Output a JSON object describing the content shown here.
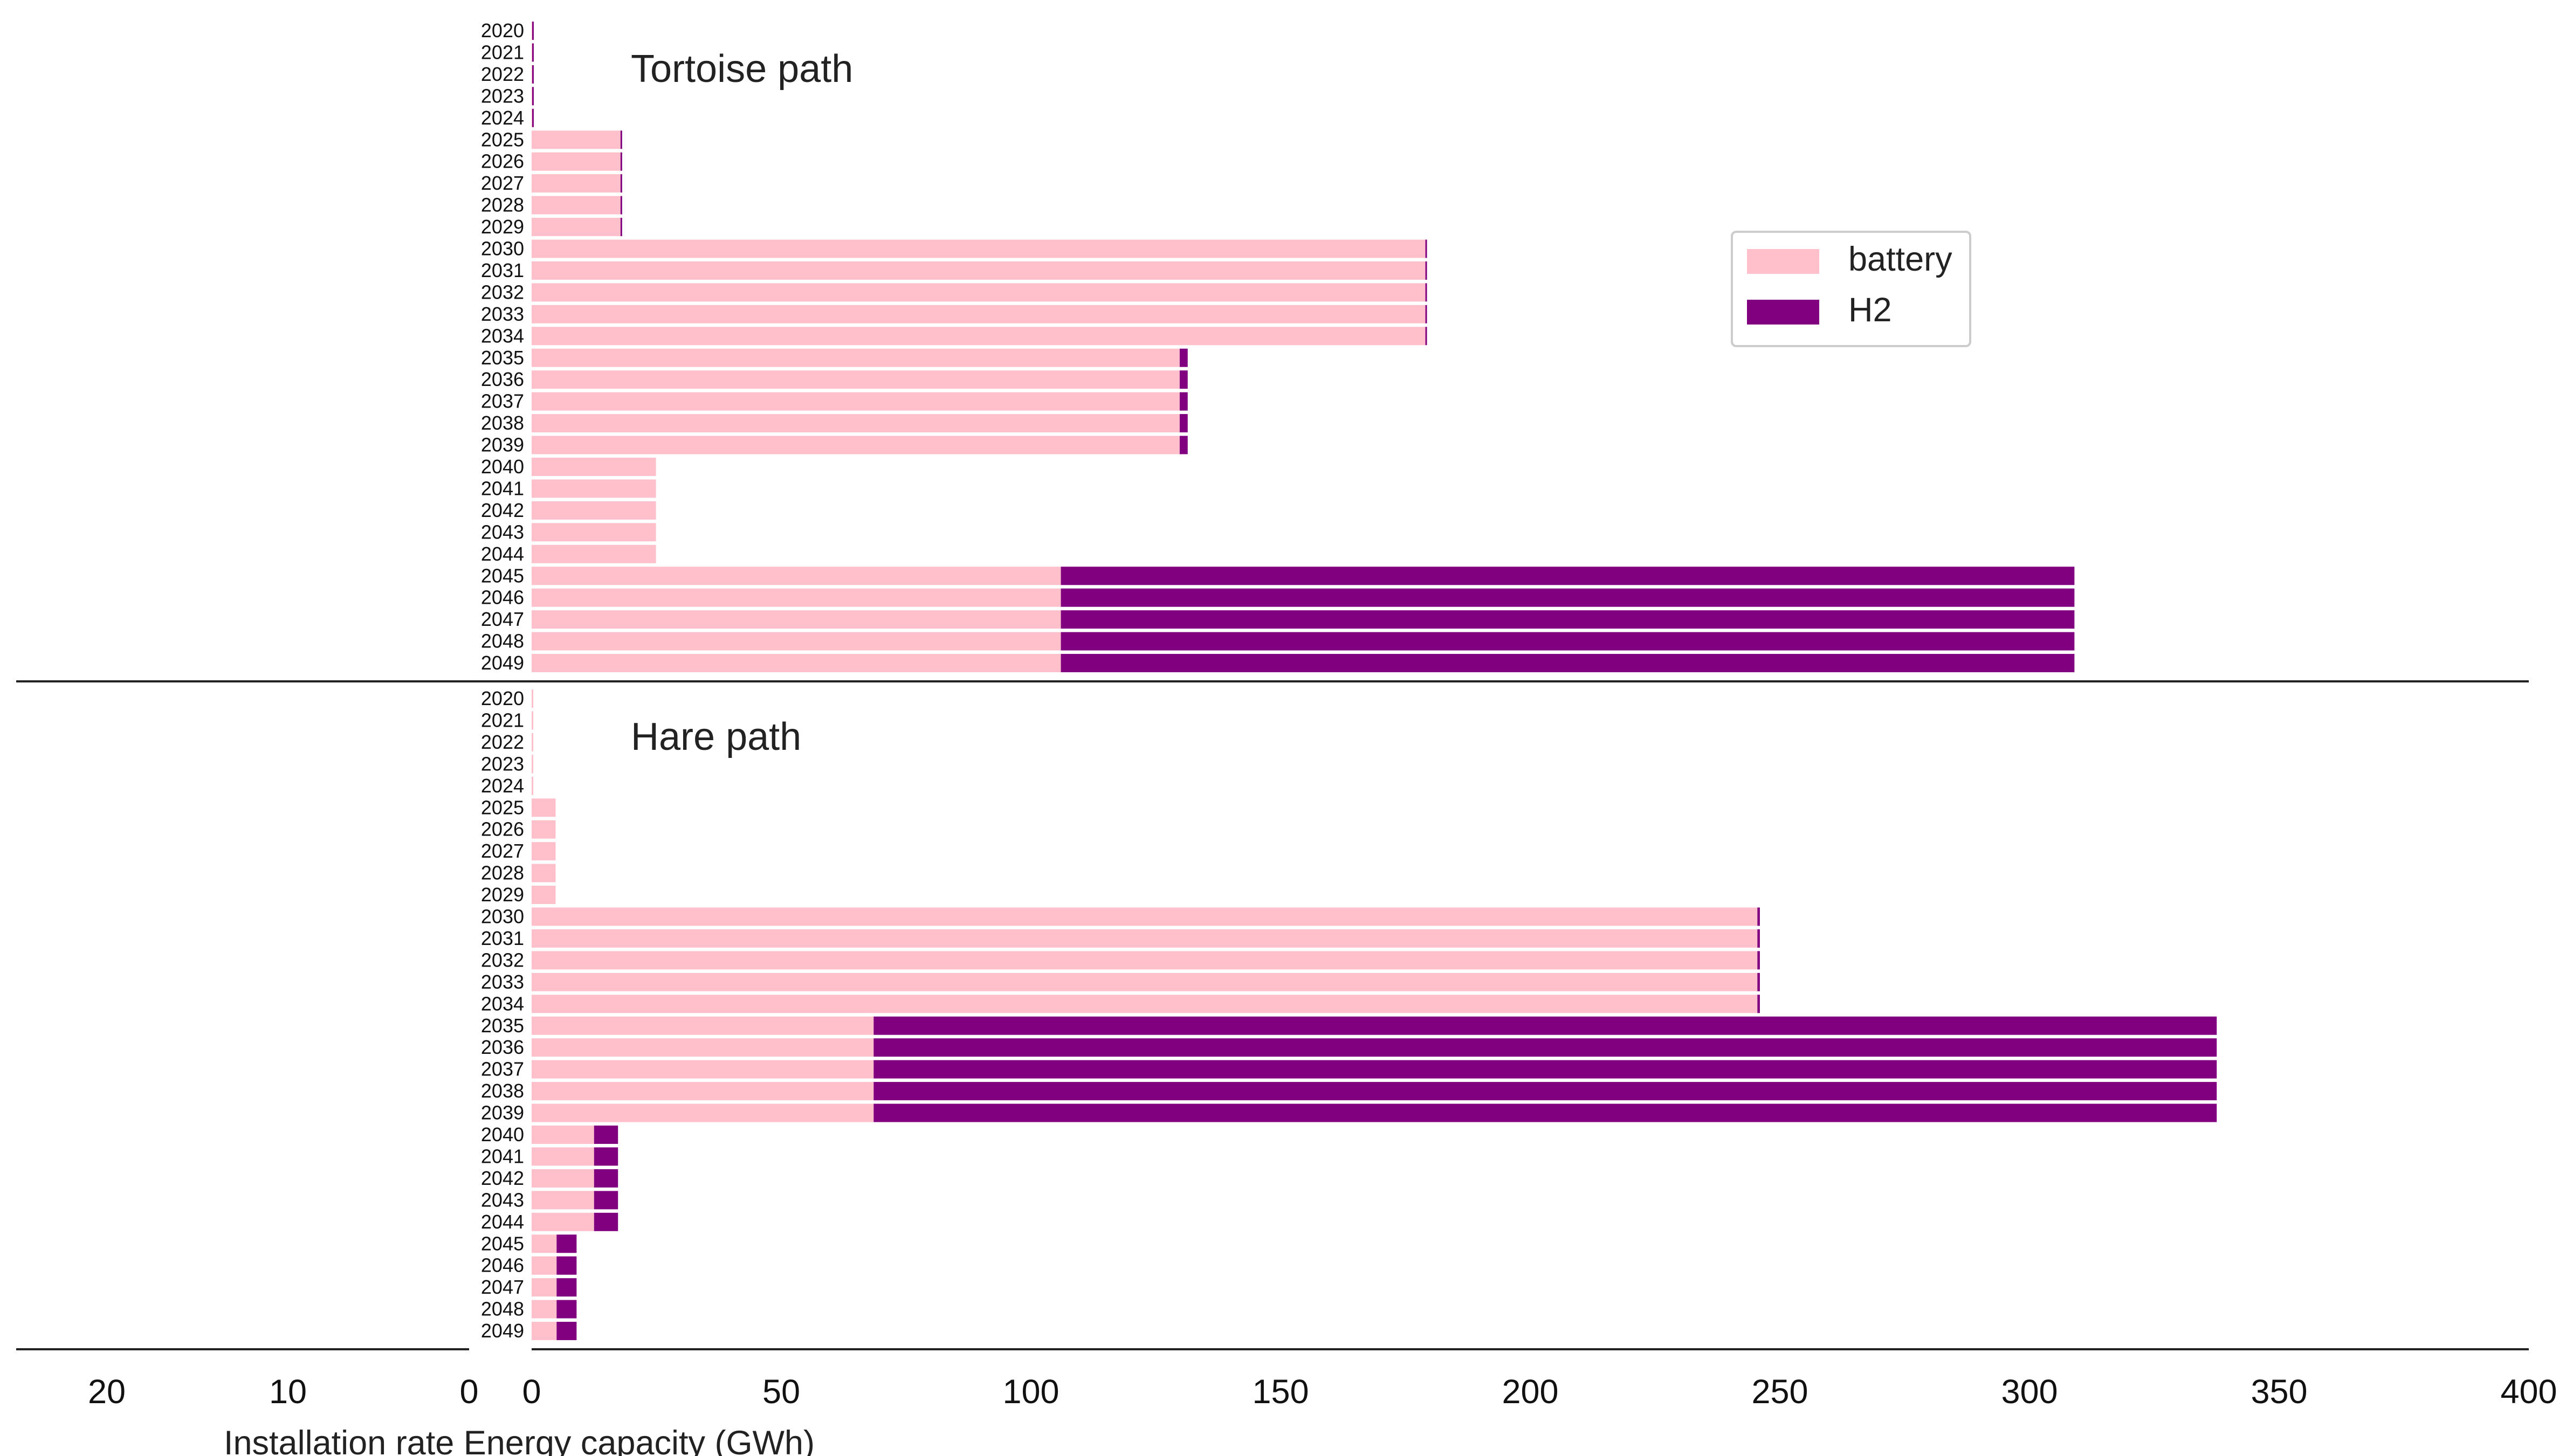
{
  "chart_data": {
    "type": "bar",
    "orientation": "horizontal",
    "stacked": true,
    "xlabel": "Installation rate Energy capacity (GWh)",
    "legend": {
      "placement": "upper-right",
      "entries": [
        {
          "name": "battery",
          "color": "#FFC0CB"
        },
        {
          "name": "H2",
          "color": "#800080"
        }
      ]
    },
    "left_axis": {
      "ticks": [
        "20",
        "10",
        "0"
      ],
      "range": [
        25,
        0
      ]
    },
    "right_axis": {
      "ticks": [
        "0",
        "50",
        "100",
        "150",
        "200",
        "250",
        "300",
        "350",
        "400"
      ],
      "range": [
        0,
        400
      ]
    },
    "grid": false,
    "categories": [
      "2020",
      "2021",
      "2022",
      "2023",
      "2024",
      "2025",
      "2026",
      "2027",
      "2028",
      "2029",
      "2030",
      "2031",
      "2032",
      "2033",
      "2034",
      "2035",
      "2036",
      "2037",
      "2038",
      "2039",
      "2040",
      "2041",
      "2042",
      "2043",
      "2044",
      "2045",
      "2046",
      "2047",
      "2048",
      "2049"
    ],
    "panels": [
      {
        "title": "Tortoise path",
        "series": [
          {
            "name": "battery",
            "color": "#FFC0CB",
            "values": [
              0.1,
              0.1,
              0.1,
              0.1,
              0.1,
              17.8,
              17.8,
              17.8,
              17.8,
              17.8,
              179,
              179,
              179,
              179,
              179,
              129.8,
              129.8,
              129.8,
              129.8,
              129.8,
              24.9,
              24.9,
              24.9,
              24.9,
              24.9,
              106,
              106,
              106,
              106,
              106
            ]
          },
          {
            "name": "H2",
            "color": "#800080",
            "values": [
              0.3,
              0.3,
              0.3,
              0.3,
              0.3,
              0.1,
              0.1,
              0.1,
              0.1,
              0.1,
              0.1,
              0.1,
              0.1,
              0.1,
              0.1,
              1.6,
              1.6,
              1.6,
              1.6,
              1.6,
              0,
              0,
              0,
              0,
              0,
              203,
              203,
              203,
              203,
              203
            ]
          }
        ]
      },
      {
        "title": "Hare path",
        "series": [
          {
            "name": "battery",
            "color": "#FFC0CB",
            "values": [
              0.1,
              0.1,
              0.1,
              0.1,
              0.1,
              4.8,
              4.8,
              4.8,
              4.8,
              4.8,
              245.5,
              245.5,
              245.5,
              245.5,
              245.5,
              68.5,
              68.5,
              68.5,
              68.5,
              68.5,
              12.5,
              12.5,
              12.5,
              12.5,
              12.5,
              5,
              5,
              5,
              5,
              5
            ]
          },
          {
            "name": "H2",
            "color": "#800080",
            "values": [
              0,
              0,
              0,
              0,
              0,
              0,
              0,
              0,
              0,
              0,
              0.5,
              0.5,
              0.5,
              0.5,
              0.5,
              269,
              269,
              269,
              269,
              269,
              4.8,
              4.8,
              4.8,
              4.8,
              4.8,
              4,
              4,
              4,
              4,
              4
            ]
          }
        ]
      }
    ]
  }
}
